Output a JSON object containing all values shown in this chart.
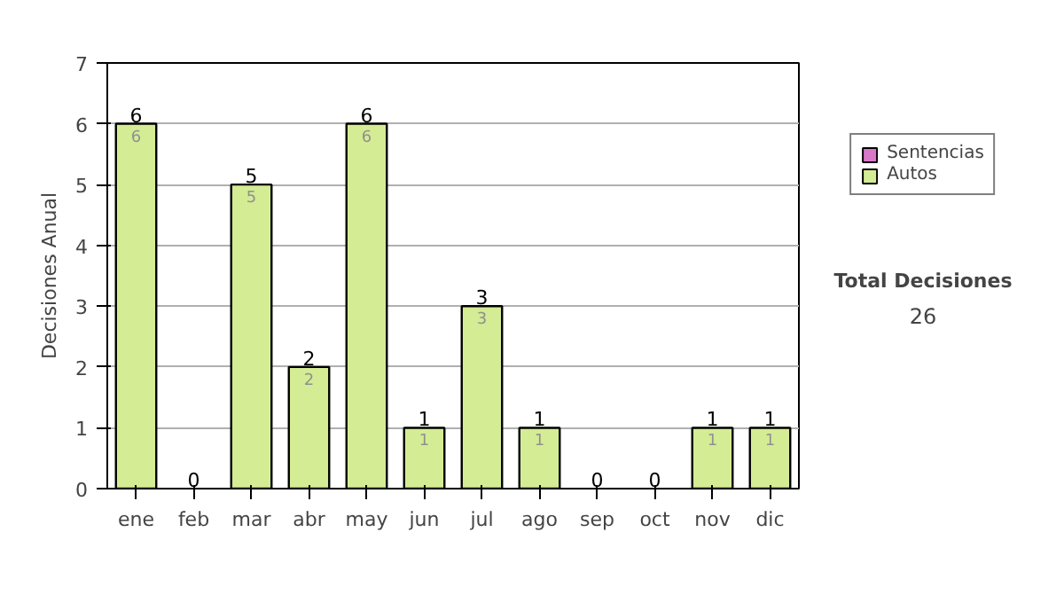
{
  "chart_data": {
    "type": "bar",
    "stacked": true,
    "ylabel": "Decisiones Anual",
    "categories": [
      "ene",
      "feb",
      "mar",
      "abr",
      "may",
      "jun",
      "jul",
      "ago",
      "sep",
      "oct",
      "nov",
      "dic"
    ],
    "series": [
      {
        "name": "Sentencias",
        "color": "#d878c8",
        "values": [
          0,
          0,
          0,
          0,
          0,
          0,
          0,
          0,
          0,
          0,
          0,
          0
        ]
      },
      {
        "name": "Autos",
        "color": "#d4ec94",
        "values": [
          6,
          0,
          5,
          2,
          6,
          1,
          3,
          1,
          0,
          0,
          1,
          1
        ],
        "value_labels": [
          "6",
          null,
          "5",
          "2",
          "6",
          "1",
          "3",
          "1",
          null,
          null,
          "1",
          "1"
        ]
      }
    ],
    "totals": [
      "6",
      "0",
      "5",
      "2",
      "6",
      "1",
      "3",
      "1",
      "0",
      "0",
      "1",
      "1"
    ],
    "ylim": [
      0,
      7
    ],
    "yticks": [
      0,
      1,
      2,
      3,
      4,
      5,
      6,
      7
    ],
    "grid": "y",
    "legend": "right",
    "annotations": [
      "Total Decisiones",
      "26"
    ]
  }
}
